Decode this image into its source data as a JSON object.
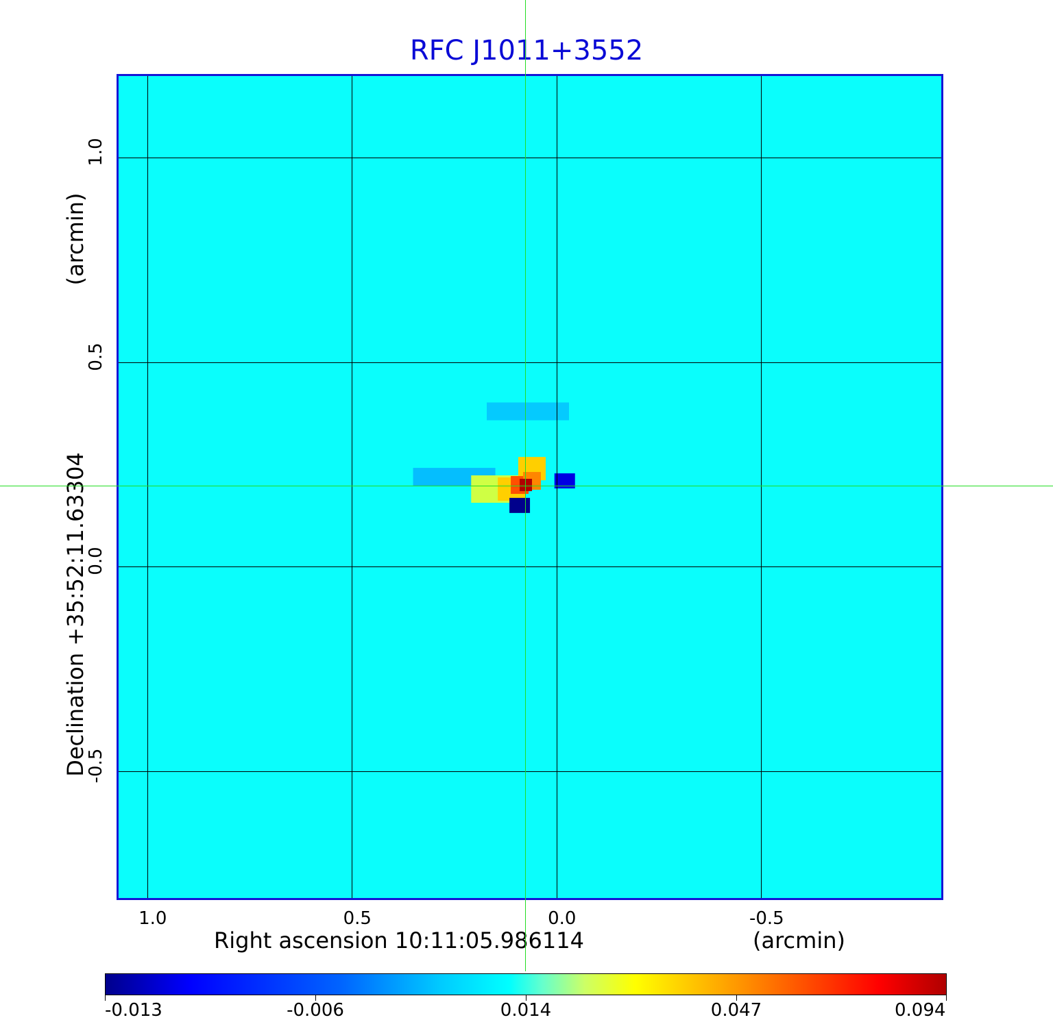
{
  "chart_data": {
    "type": "heatmap",
    "title": "RFC J1011+3552",
    "xlabel": "Right ascension  10:11:05.986114",
    "xunit": "(arcmin)",
    "ylabel": "Declination  +35:52:11.63304",
    "yunit": "(arcmin)",
    "xlim": [
      1.07,
      -0.94
    ],
    "ylim": [
      -0.81,
      1.2
    ],
    "x_ticks": [
      1.0,
      0.5,
      0.0,
      -0.5
    ],
    "x_tick_labels": [
      "1.0",
      "0.5",
      "0.0",
      "-0.5"
    ],
    "y_ticks": [
      1.0,
      0.5,
      0.0,
      -0.5
    ],
    "y_tick_labels": [
      "1.0",
      "0.5",
      "0.0",
      "-0.5"
    ],
    "grid": true,
    "crosshair": {
      "x": 0.075,
      "y": 0.195
    },
    "background_value": 0.0,
    "peak_value": 0.094,
    "colorbar": {
      "tick_labels": [
        "-0.013",
        "-0.006",
        "0.014",
        "0.047",
        "0.094"
      ],
      "colors": [
        "#00008c",
        "#0000ff",
        "#00ffff",
        "#ffff00",
        "#ff0000",
        "#b00000"
      ]
    },
    "features": [
      {
        "x": 0.075,
        "y": 0.2,
        "value": 0.094,
        "kind": "peak"
      },
      {
        "x": 0.09,
        "y": 0.2,
        "value": 0.06,
        "kind": "bright"
      },
      {
        "x": 0.06,
        "y": 0.21,
        "value": 0.05,
        "kind": "bright"
      },
      {
        "x": 0.11,
        "y": 0.19,
        "value": 0.035,
        "kind": "ring"
      },
      {
        "x": 0.06,
        "y": 0.24,
        "value": 0.035,
        "kind": "ring"
      },
      {
        "x": 0.15,
        "y": 0.19,
        "value": 0.02,
        "kind": "halo"
      },
      {
        "x": 0.09,
        "y": 0.15,
        "value": -0.013,
        "kind": "negative"
      },
      {
        "x": -0.02,
        "y": 0.21,
        "value": -0.01,
        "kind": "negative"
      },
      {
        "x": 0.25,
        "y": 0.22,
        "value": -0.005,
        "kind": "sidelobe"
      },
      {
        "x": 0.07,
        "y": 0.38,
        "value": -0.004,
        "kind": "sidelobe"
      }
    ]
  }
}
